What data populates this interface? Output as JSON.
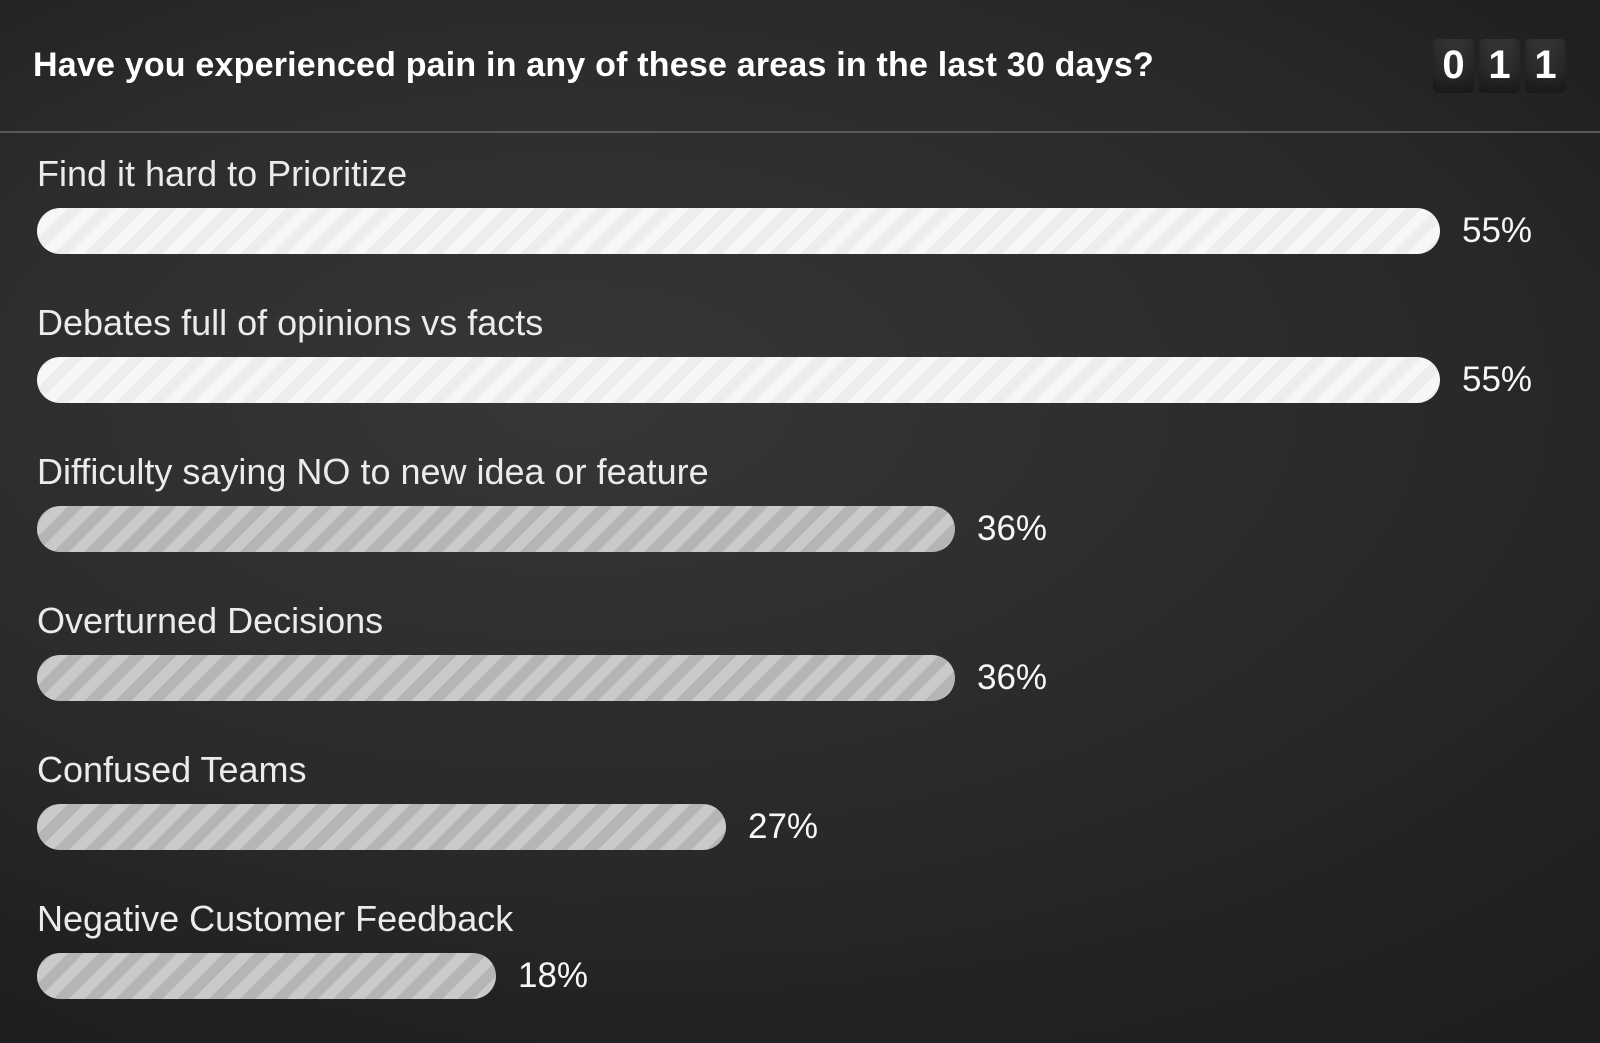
{
  "header": {
    "question": "Have you experienced pain in any of these areas in the last 30 days?",
    "counter_digits": [
      "0",
      "1",
      "1"
    ]
  },
  "chart_data": {
    "type": "bar",
    "orientation": "horizontal",
    "title": "Have you experienced pain in any of these areas in the last 30 days?",
    "categories": [
      "Find it hard to Prioritize",
      "Debates full of opinions vs facts",
      "Difficulty saying NO to new idea or feature",
      "Overturned Decisions",
      "Confused Teams",
      "Negative Customer Feedback"
    ],
    "values": [
      55,
      55,
      36,
      36,
      27,
      18
    ],
    "value_labels": [
      "55%",
      "55%",
      "36%",
      "36%",
      "27%",
      "18%"
    ],
    "unit": "%",
    "scale_max": 55,
    "respondent_counter": "011",
    "legend": "none",
    "grid": "off"
  },
  "bars": [
    {
      "label": "Find it hard to Prioritize",
      "value": 55,
      "pct_label": "55%",
      "variant": "bright"
    },
    {
      "label": "Debates full of opinions vs facts",
      "value": 55,
      "pct_label": "55%",
      "variant": "bright"
    },
    {
      "label": "Difficulty saying NO to new idea or feature",
      "value": 36,
      "pct_label": "36%",
      "variant": "muted"
    },
    {
      "label": "Overturned Decisions",
      "value": 36,
      "pct_label": "36%",
      "variant": "muted"
    },
    {
      "label": "Confused Teams",
      "value": 27,
      "pct_label": "27%",
      "variant": "muted"
    },
    {
      "label": "Negative Customer Feedback",
      "value": 18,
      "pct_label": "18%",
      "variant": "muted"
    }
  ],
  "colors": {
    "bar_bright_base": "#ebeeec",
    "bar_bright_stripe": "#f6f7f6",
    "bar_muted_base": "#b3b6b5",
    "bar_muted_stripe": "#c8cbca",
    "divider": "#585858",
    "label_text": "#eaece9",
    "pct_text": "#f7f7f7",
    "counter_box": "#2e2e2e",
    "background_center": "#242424",
    "background_edge": "#0b0b0b"
  }
}
